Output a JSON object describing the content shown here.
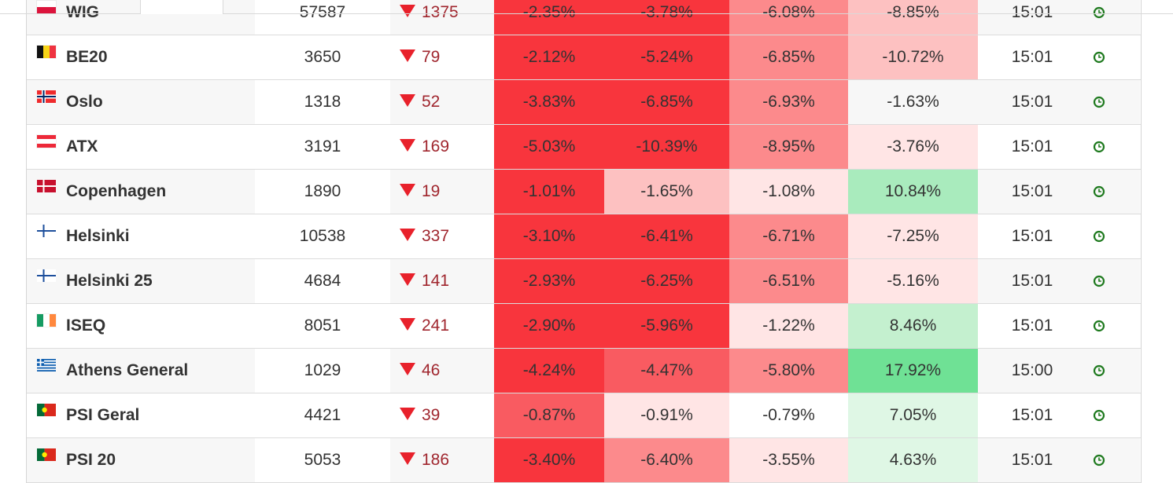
{
  "colors": {
    "strong_red": "#f8353d",
    "medium_red": "#f95b61",
    "light_red": "#fc8a8c",
    "pale_red": "#fdc1c1",
    "faint_red": "#ffe5e5",
    "faint_green": "#dff7e5",
    "pale_green": "#c4f0cf",
    "light_green": "#a9ebbd",
    "strong_green": "#6fe195",
    "arrow_red": "#e8212b",
    "change_text": "#a0262e",
    "clock_green": "#1f7a1f"
  },
  "rows": [
    {
      "flag": "poland",
      "name": "WIG",
      "last": "57587",
      "change": "1375",
      "p1": "-2.35%",
      "p2": "-3.78%",
      "p3": "-6.08%",
      "p4": "-8.85%",
      "time": "15:01",
      "shade": {
        "p1": "strong_red",
        "p2": "strong_red",
        "p3": "light_red",
        "p4": "pale_red"
      }
    },
    {
      "flag": "belgium",
      "name": "BE20",
      "last": "3650",
      "change": "79",
      "p1": "-2.12%",
      "p2": "-5.24%",
      "p3": "-6.85%",
      "p4": "-10.72%",
      "time": "15:01",
      "shade": {
        "p1": "strong_red",
        "p2": "strong_red",
        "p3": "light_red",
        "p4": "pale_red"
      }
    },
    {
      "flag": "norway",
      "name": "Oslo",
      "last": "1318",
      "change": "52",
      "p1": "-3.83%",
      "p2": "-6.85%",
      "p3": "-6.93%",
      "p4": "-1.63%",
      "time": "15:01",
      "shade": {
        "p1": "strong_red",
        "p2": "strong_red",
        "p3": "light_red",
        "p4": "none"
      }
    },
    {
      "flag": "austria",
      "name": "ATX",
      "last": "3191",
      "change": "169",
      "p1": "-5.03%",
      "p2": "-10.39%",
      "p3": "-8.95%",
      "p4": "-3.76%",
      "time": "15:01",
      "shade": {
        "p1": "strong_red",
        "p2": "strong_red",
        "p3": "light_red",
        "p4": "faint_red"
      }
    },
    {
      "flag": "denmark",
      "name": "Copenhagen",
      "last": "1890",
      "change": "19",
      "p1": "-1.01%",
      "p2": "-1.65%",
      "p3": "-1.08%",
      "p4": "10.84%",
      "time": "15:01",
      "shade": {
        "p1": "strong_red",
        "p2": "pale_red",
        "p3": "faint_red",
        "p4": "light_green"
      }
    },
    {
      "flag": "finland",
      "name": "Helsinki",
      "last": "10538",
      "change": "337",
      "p1": "-3.10%",
      "p2": "-6.41%",
      "p3": "-6.71%",
      "p4": "-7.25%",
      "time": "15:01",
      "shade": {
        "p1": "strong_red",
        "p2": "strong_red",
        "p3": "light_red",
        "p4": "faint_red"
      }
    },
    {
      "flag": "finland",
      "name": "Helsinki 25",
      "last": "4684",
      "change": "141",
      "p1": "-2.93%",
      "p2": "-6.25%",
      "p3": "-6.51%",
      "p4": "-5.16%",
      "time": "15:01",
      "shade": {
        "p1": "strong_red",
        "p2": "strong_red",
        "p3": "light_red",
        "p4": "faint_red"
      }
    },
    {
      "flag": "ireland",
      "name": "ISEQ",
      "last": "8051",
      "change": "241",
      "p1": "-2.90%",
      "p2": "-5.96%",
      "p3": "-1.22%",
      "p4": "8.46%",
      "time": "15:01",
      "shade": {
        "p1": "strong_red",
        "p2": "strong_red",
        "p3": "faint_red",
        "p4": "pale_green"
      }
    },
    {
      "flag": "greece",
      "name": "Athens General",
      "last": "1029",
      "change": "46",
      "p1": "-4.24%",
      "p2": "-4.47%",
      "p3": "-5.80%",
      "p4": "17.92%",
      "time": "15:00",
      "shade": {
        "p1": "strong_red",
        "p2": "medium_red",
        "p3": "light_red",
        "p4": "strong_green"
      }
    },
    {
      "flag": "portugal",
      "name": "PSI Geral",
      "last": "4421",
      "change": "39",
      "p1": "-0.87%",
      "p2": "-0.91%",
      "p3": "-0.79%",
      "p4": "7.05%",
      "time": "15:01",
      "shade": {
        "p1": "medium_red",
        "p2": "faint_red",
        "p3": "none",
        "p4": "faint_green"
      }
    },
    {
      "flag": "portugal",
      "name": "PSI 20",
      "last": "5053",
      "change": "186",
      "p1": "-3.40%",
      "p2": "-6.40%",
      "p3": "-3.55%",
      "p4": "4.63%",
      "time": "15:01",
      "shade": {
        "p1": "strong_red",
        "p2": "light_red",
        "p3": "faint_red",
        "p4": "faint_green"
      }
    }
  ]
}
